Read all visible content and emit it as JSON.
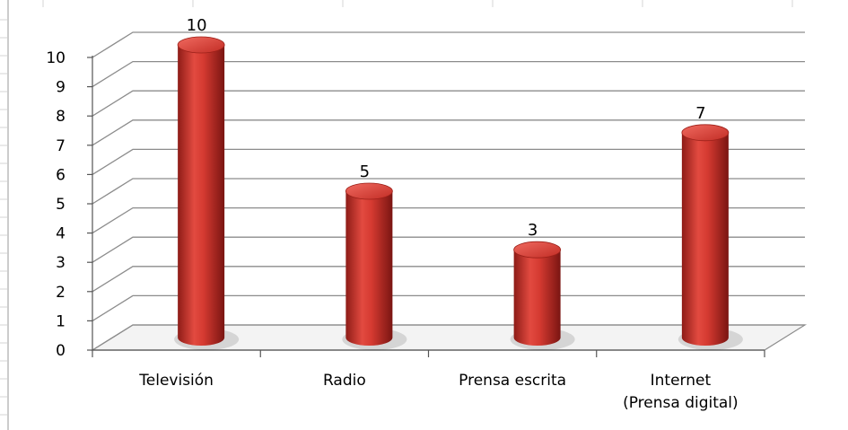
{
  "chart_data": {
    "type": "bar",
    "style": "3d-cylinder",
    "categories": [
      [
        "Televisión"
      ],
      [
        "Radio"
      ],
      [
        "Prensa escrita"
      ],
      [
        "Internet",
        "(Prensa digital)"
      ]
    ],
    "values": [
      10,
      5,
      3,
      7
    ],
    "data_labels": [
      "10",
      "5",
      "3",
      "7"
    ],
    "title": "",
    "xlabel": "",
    "ylabel": "",
    "ylim": [
      0,
      10
    ],
    "yticks": [
      0,
      1,
      2,
      3,
      4,
      5,
      6,
      7,
      8,
      9,
      10
    ],
    "grid": true,
    "legend": "none",
    "colors": {
      "bar": "#c8302a",
      "bar_highlight": "#ee5a52",
      "bar_shadow": "#7a1512",
      "grid": "#8c8c8c",
      "spreadsheet_lines": "#d4d4d4"
    }
  }
}
